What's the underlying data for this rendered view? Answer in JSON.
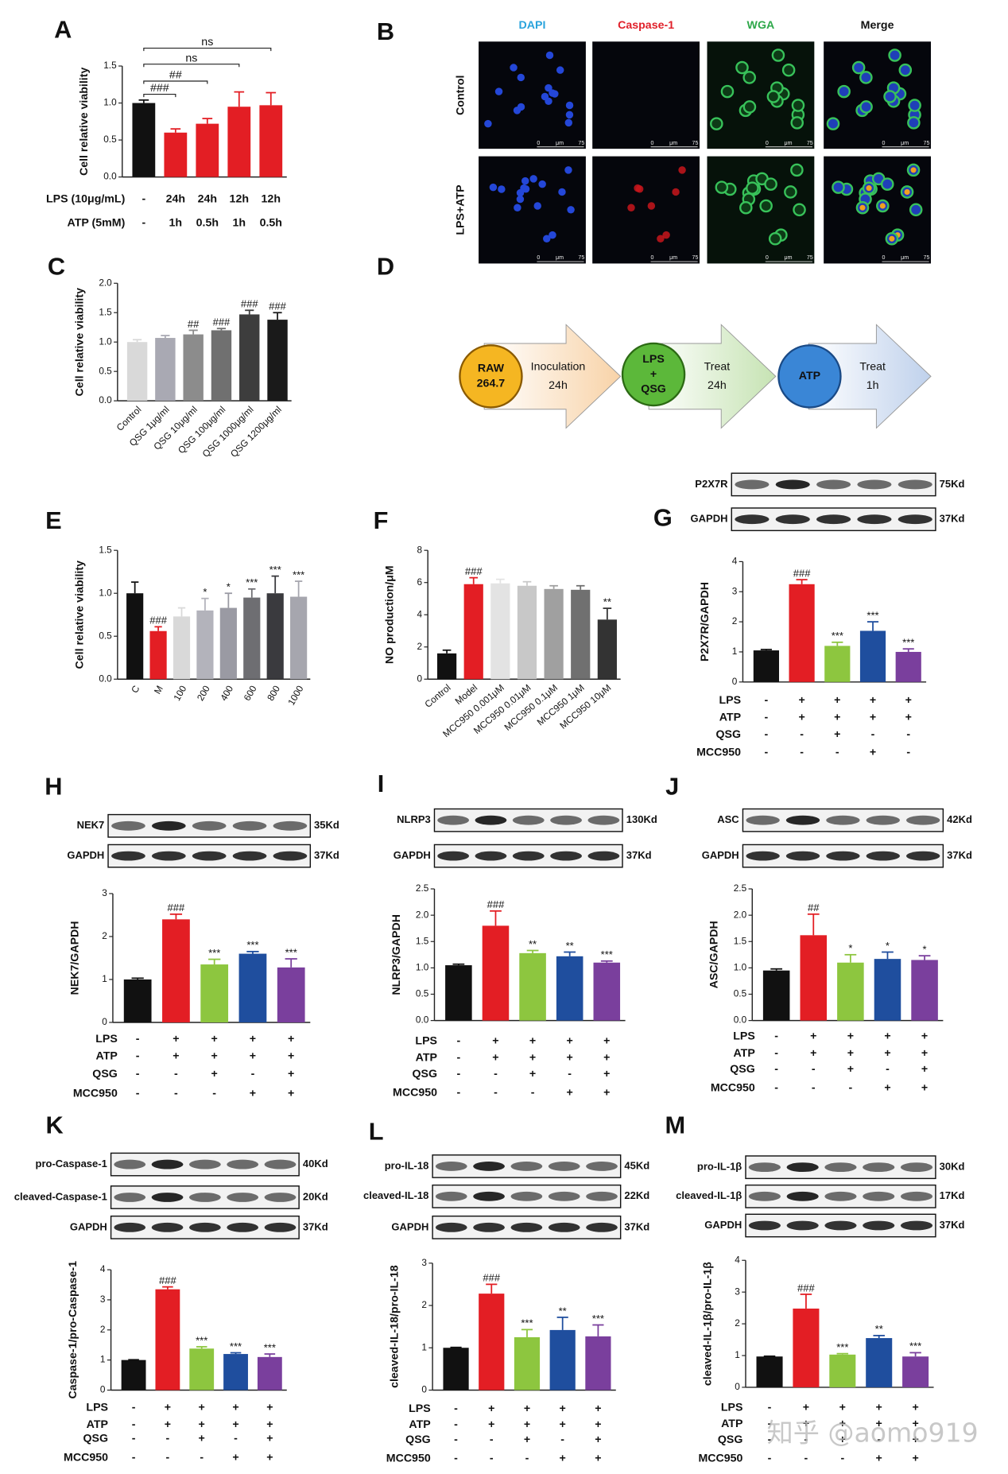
{
  "chart_data": [
    {
      "type": "bar",
      "panel": "A",
      "y_label": "Cell relative viability",
      "values": [
        1.0,
        0.6,
        0.72,
        0.95,
        0.97
      ],
      "errors": [
        0.04,
        0.05,
        0.07,
        0.2,
        0.17
      ],
      "colors": [
        "#111111",
        "#e31e24",
        "#e31e24",
        "#e31e24",
        "#e31e24"
      ],
      "ylim": [
        0,
        1.5
      ],
      "yticks": [
        {
          "value": 0,
          "label": "0.0"
        },
        0.5,
        {
          "value": 1,
          "label": "1.0"
        },
        1.5
      ],
      "brackets": [
        {
          "from": 0,
          "to": 1,
          "label": "###"
        },
        {
          "from": 0,
          "to": 2,
          "label": "##"
        },
        {
          "from": 0,
          "to": 3,
          "label": "ns"
        },
        {
          "from": 0,
          "to": 4,
          "label": "ns"
        }
      ],
      "treatments": [
        {
          "label": "LPS (10μg/mL)",
          "values": [
            "-",
            "24h",
            "24h",
            "12h",
            "12h"
          ]
        },
        {
          "label": "ATP (5mM)",
          "values": [
            "-",
            "1h",
            "0.5h",
            "1h",
            "0.5h"
          ]
        }
      ]
    },
    {
      "type": "bar",
      "panel": "C",
      "y_label": "Cell relative viability",
      "categories": [
        "Control",
        "QSG 1μg/ml",
        "QSG 10μg/ml",
        "QSG 100μg/ml",
        "QSG 1000μg/ml",
        "QSG 1200μg/ml"
      ],
      "values": [
        1.0,
        1.07,
        1.13,
        1.2,
        1.47,
        1.38
      ],
      "errors": [
        0.04,
        0.04,
        0.07,
        0.03,
        0.07,
        0.12
      ],
      "annotations": [
        null,
        null,
        "##",
        "###",
        "###",
        "###"
      ],
      "colors": [
        "#d9d9d9",
        "#a9a9b3",
        "#8c8c8c",
        "#707070",
        "#3d3d3d",
        "#1a1a1a"
      ],
      "ylim": [
        0,
        2
      ],
      "yticks": [
        {
          "value": 0,
          "label": "0.0"
        },
        0.5,
        {
          "value": 1,
          "label": "1.0"
        },
        1.5,
        {
          "value": 2,
          "label": "2.0"
        }
      ]
    },
    {
      "type": "bar",
      "panel": "E",
      "y_label": "Cell relative viability",
      "categories": [
        "C",
        "M",
        "100",
        "200",
        "400",
        "600",
        "800",
        "1000"
      ],
      "values": [
        1.0,
        0.56,
        0.73,
        0.8,
        0.83,
        0.95,
        1.0,
        0.96
      ],
      "errors": [
        0.13,
        0.05,
        0.1,
        0.14,
        0.17,
        0.1,
        0.2,
        0.18
      ],
      "annotations": [
        null,
        "###",
        null,
        "*",
        "*",
        "***",
        "***",
        "***"
      ],
      "colors": [
        "#111111",
        "#e31e24",
        "#d9d9d9",
        "#b3b3bb",
        "#9a9aa3",
        "#6e6e72",
        "#3a3a3e",
        "#a6a6ae"
      ],
      "ylim": [
        0,
        1.5
      ],
      "yticks": [
        {
          "value": 0,
          "label": "0.0"
        },
        0.5,
        {
          "value": 1,
          "label": "1.0"
        },
        1.5
      ]
    },
    {
      "type": "bar",
      "panel": "F",
      "y_label": "NO production/μM",
      "categories": [
        "Control",
        "Model",
        "MCC950 0.001μM",
        "MCC950 0.01μM",
        "MCC950 0.1μM",
        "MCC950 1μM",
        "MCC950 10μM"
      ],
      "values": [
        1.6,
        5.9,
        5.95,
        5.8,
        5.6,
        5.55,
        3.7
      ],
      "errors": [
        0.2,
        0.4,
        0.25,
        0.25,
        0.2,
        0.25,
        0.7
      ],
      "annotations": [
        null,
        "###",
        null,
        null,
        null,
        null,
        "**"
      ],
      "colors": [
        "#111111",
        "#e31e24",
        "#e3e3e3",
        "#c8c8c8",
        "#a0a0a0",
        "#707070",
        "#333333"
      ],
      "ylim": [
        0,
        8
      ],
      "yticks": [
        0,
        2,
        4,
        6,
        8
      ]
    },
    {
      "type": "bar",
      "panel": "G",
      "y_label": "P2X7R/GAPDH",
      "blots": [
        {
          "label": "P2X7R",
          "size": "75Kd"
        },
        {
          "label": "GAPDH",
          "size": "37Kd"
        }
      ],
      "values": [
        1.05,
        3.25,
        1.2,
        1.7,
        1.0
      ],
      "errors": [
        0.03,
        0.15,
        0.12,
        0.3,
        0.1
      ],
      "annotations": [
        null,
        "###",
        "***",
        "***",
        "***"
      ],
      "colors": [
        "#111111",
        "#e31e24",
        "#8dc63f",
        "#1f4e9e",
        "#7a3f9d"
      ],
      "ylim": [
        0,
        4
      ],
      "yticks": [
        0,
        1,
        2,
        3,
        4
      ],
      "treatments": [
        {
          "label": "LPS",
          "values": [
            "-",
            "+",
            "+",
            "+",
            "+"
          ]
        },
        {
          "label": "ATP",
          "values": [
            "-",
            "+",
            "+",
            "+",
            "+"
          ]
        },
        {
          "label": "QSG",
          "values": [
            "-",
            "-",
            "+",
            "-",
            "-"
          ]
        },
        {
          "label": "MCC950",
          "values": [
            "-",
            "-",
            "-",
            "+",
            "-"
          ]
        }
      ]
    },
    {
      "type": "bar",
      "panel": "H",
      "y_label": "NEK7/GAPDH",
      "blots": [
        {
          "label": "NEK7",
          "size": "35Kd"
        },
        {
          "label": "GAPDH",
          "size": "37Kd"
        }
      ],
      "values": [
        1.0,
        2.4,
        1.35,
        1.6,
        1.28
      ],
      "errors": [
        0.03,
        0.12,
        0.12,
        0.05,
        0.2
      ],
      "annotations": [
        null,
        "###",
        "***",
        "***",
        "***"
      ],
      "colors": [
        "#111111",
        "#e31e24",
        "#8dc63f",
        "#1f4e9e",
        "#7a3f9d"
      ],
      "ylim": [
        0,
        3
      ],
      "yticks": [
        0,
        1,
        2,
        3
      ],
      "treatments": [
        {
          "label": "LPS",
          "values": [
            "-",
            "+",
            "+",
            "+",
            "+"
          ]
        },
        {
          "label": "ATP",
          "values": [
            "-",
            "+",
            "+",
            "+",
            "+"
          ]
        },
        {
          "label": "QSG",
          "values": [
            "-",
            "-",
            "+",
            "-",
            "+"
          ]
        },
        {
          "label": "MCC950",
          "values": [
            "-",
            "-",
            "-",
            "+",
            "+"
          ]
        }
      ]
    },
    {
      "type": "bar",
      "panel": "I",
      "y_label": "NLRP3/GAPDH",
      "blots": [
        {
          "label": "NLRP3",
          "size": "130Kd"
        },
        {
          "label": "GAPDH",
          "size": "37Kd"
        }
      ],
      "values": [
        1.05,
        1.8,
        1.28,
        1.22,
        1.1
      ],
      "errors": [
        0.02,
        0.28,
        0.05,
        0.08,
        0.03
      ],
      "annotations": [
        null,
        "###",
        "**",
        "**",
        "***"
      ],
      "colors": [
        "#111111",
        "#e31e24",
        "#8dc63f",
        "#1f4e9e",
        "#7a3f9d"
      ],
      "ylim": [
        0,
        2.5
      ],
      "yticks": [
        {
          "value": 0,
          "label": "0.0"
        },
        0.5,
        {
          "value": 1,
          "label": "1.0"
        },
        1.5,
        {
          "value": 2,
          "label": "2.0"
        },
        2.5
      ],
      "treatments": [
        {
          "label": "LPS",
          "values": [
            "-",
            "+",
            "+",
            "+",
            "+"
          ]
        },
        {
          "label": "ATP",
          "values": [
            "-",
            "+",
            "+",
            "+",
            "+"
          ]
        },
        {
          "label": "QSG",
          "values": [
            "-",
            "-",
            "+",
            "-",
            "+"
          ]
        },
        {
          "label": "MCC950",
          "values": [
            "-",
            "-",
            "-",
            "+",
            "+"
          ]
        }
      ]
    },
    {
      "type": "bar",
      "panel": "J",
      "y_label": "ASC/GAPDH",
      "blots": [
        {
          "label": "ASC",
          "size": "42Kd"
        },
        {
          "label": "GAPDH",
          "size": "37Kd"
        }
      ],
      "values": [
        0.95,
        1.62,
        1.1,
        1.17,
        1.15
      ],
      "errors": [
        0.03,
        0.4,
        0.15,
        0.13,
        0.08
      ],
      "annotations": [
        null,
        "##",
        "*",
        "*",
        "*"
      ],
      "colors": [
        "#111111",
        "#e31e24",
        "#8dc63f",
        "#1f4e9e",
        "#7a3f9d"
      ],
      "ylim": [
        0,
        2.5
      ],
      "yticks": [
        {
          "value": 0,
          "label": "0.0"
        },
        0.5,
        {
          "value": 1,
          "label": "1.0"
        },
        1.5,
        {
          "value": 2,
          "label": "2.0"
        },
        2.5
      ],
      "treatments": [
        {
          "label": "LPS",
          "values": [
            "-",
            "+",
            "+",
            "+",
            "+"
          ]
        },
        {
          "label": "ATP",
          "values": [
            "-",
            "+",
            "+",
            "+",
            "+"
          ]
        },
        {
          "label": "QSG",
          "values": [
            "-",
            "-",
            "+",
            "-",
            "+"
          ]
        },
        {
          "label": "MCC950",
          "values": [
            "-",
            "-",
            "-",
            "+",
            "+"
          ]
        }
      ]
    },
    {
      "type": "bar",
      "panel": "K",
      "y_label": "Caspase-1/pro-Caspase-1",
      "blots": [
        {
          "label": "pro-Caspase-1",
          "size": "40Kd"
        },
        {
          "label": "cleaved-Caspase-1",
          "size": "20Kd"
        },
        {
          "label": "GAPDH",
          "size": "37Kd"
        }
      ],
      "values": [
        1.0,
        3.35,
        1.38,
        1.2,
        1.1
      ],
      "errors": [
        0.01,
        0.08,
        0.06,
        0.04,
        0.1
      ],
      "annotations": [
        null,
        "###",
        "***",
        "***",
        "***"
      ],
      "colors": [
        "#111111",
        "#e31e24",
        "#8dc63f",
        "#1f4e9e",
        "#7a3f9d"
      ],
      "ylim": [
        0,
        4
      ],
      "yticks": [
        0,
        1,
        2,
        3,
        4
      ],
      "treatments": [
        {
          "label": "LPS",
          "values": [
            "-",
            "+",
            "+",
            "+",
            "+"
          ]
        },
        {
          "label": "ATP",
          "values": [
            "-",
            "+",
            "+",
            "+",
            "+"
          ]
        },
        {
          "label": "QSG",
          "values": [
            "-",
            "-",
            "+",
            "-",
            "+"
          ]
        },
        {
          "label": "MCC950",
          "values": [
            "-",
            "-",
            "-",
            "+",
            "+"
          ]
        }
      ]
    },
    {
      "type": "bar",
      "panel": "L",
      "y_label": "cleaved-IL-18/pro-IL-18",
      "blots": [
        {
          "label": "pro-IL-18",
          "size": "45Kd"
        },
        {
          "label": "cleaved-IL-18",
          "size": "22Kd"
        },
        {
          "label": "GAPDH",
          "size": "37Kd"
        }
      ],
      "values": [
        1.0,
        2.28,
        1.25,
        1.42,
        1.27
      ],
      "errors": [
        0.01,
        0.22,
        0.18,
        0.3,
        0.27
      ],
      "annotations": [
        null,
        "###",
        "***",
        "**",
        "***"
      ],
      "colors": [
        "#111111",
        "#e31e24",
        "#8dc63f",
        "#1f4e9e",
        "#7a3f9d"
      ],
      "ylim": [
        0,
        3
      ],
      "yticks": [
        0,
        1,
        2,
        3
      ],
      "treatments": [
        {
          "label": "LPS",
          "values": [
            "-",
            "+",
            "+",
            "+",
            "+"
          ]
        },
        {
          "label": "ATP",
          "values": [
            "-",
            "+",
            "+",
            "+",
            "+"
          ]
        },
        {
          "label": "QSG",
          "values": [
            "-",
            "-",
            "+",
            "-",
            "+"
          ]
        },
        {
          "label": "MCC950",
          "values": [
            "-",
            "-",
            "-",
            "+",
            "+"
          ]
        }
      ]
    },
    {
      "type": "bar",
      "panel": "M",
      "y_label": "cleaved-IL-1β/pro-IL-1β",
      "blots": [
        {
          "label": "pro-IL-1β",
          "size": "30Kd"
        },
        {
          "label": "cleaved-IL-1β",
          "size": "17Kd"
        },
        {
          "label": "GAPDH",
          "size": "37Kd"
        }
      ],
      "values": [
        0.97,
        2.48,
        1.03,
        1.55,
        0.97
      ],
      "errors": [
        0.01,
        0.45,
        0.03,
        0.08,
        0.12
      ],
      "annotations": [
        null,
        "###",
        "***",
        "**",
        "***"
      ],
      "colors": [
        "#111111",
        "#e31e24",
        "#8dc63f",
        "#1f4e9e",
        "#7a3f9d"
      ],
      "ylim": [
        0,
        4
      ],
      "yticks": [
        0,
        1,
        2,
        3,
        4
      ],
      "treatments": [
        {
          "label": "LPS",
          "values": [
            "-",
            "+",
            "+",
            "+",
            "+"
          ]
        },
        {
          "label": "ATP",
          "values": [
            "-",
            "+",
            "+",
            "+",
            "+"
          ]
        },
        {
          "label": "QSG",
          "values": [
            "-",
            "-",
            "+",
            "-",
            "+"
          ]
        },
        {
          "label": "MCC950",
          "values": [
            "-",
            "-",
            "-",
            "+",
            "+"
          ]
        }
      ]
    }
  ],
  "microscopy": {
    "panel": "B",
    "columns": [
      {
        "name": "DAPI",
        "color": "#29a3dc"
      },
      {
        "name": "Caspase-1",
        "color": "#e0202a"
      },
      {
        "name": "WGA",
        "color": "#2ea84a"
      },
      {
        "name": "Merge",
        "color": "#111111"
      }
    ],
    "rows": [
      "Control",
      "LPS+ATP"
    ],
    "scale": [
      "0",
      "μm",
      "75"
    ]
  },
  "workflow": {
    "panel": "D",
    "steps": [
      {
        "circle": [
          "RAW",
          "264.7"
        ],
        "text": [
          "Inoculation",
          "24h"
        ]
      },
      {
        "circle": [
          "LPS",
          "+",
          "QSG"
        ],
        "text": [
          "Treat",
          "24h"
        ]
      },
      {
        "circle": [
          "ATP"
        ],
        "text": [
          "Treat",
          "1h"
        ]
      }
    ]
  },
  "watermark": "知乎 @aomo919"
}
